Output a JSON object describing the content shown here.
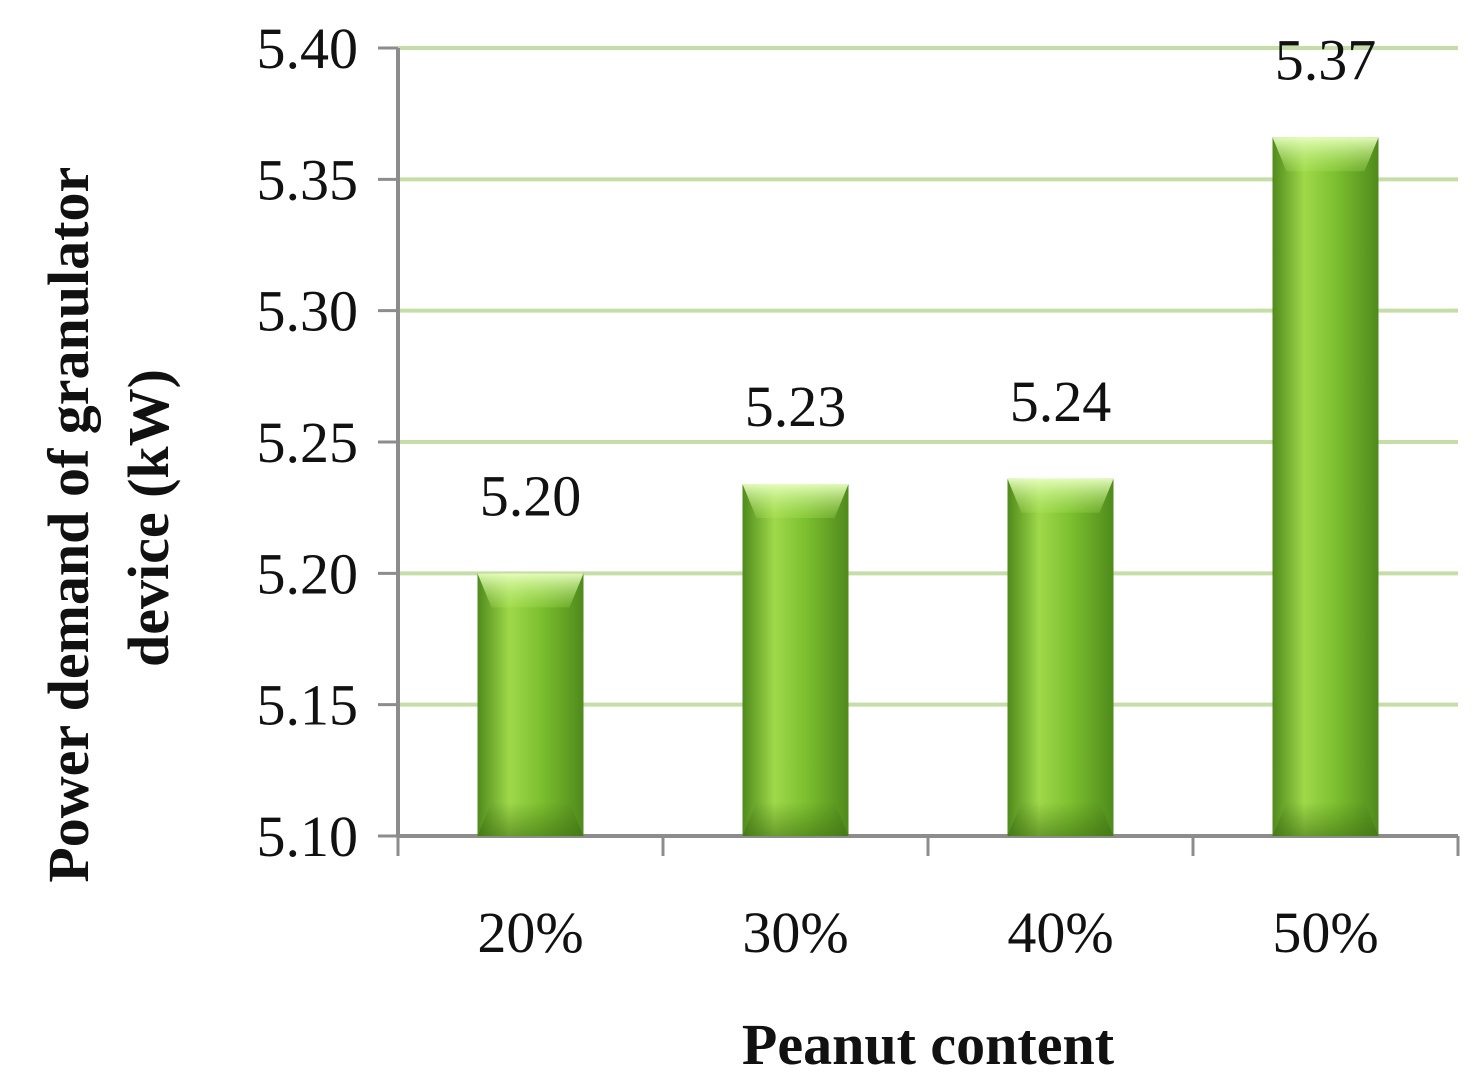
{
  "chart_data": {
    "type": "bar",
    "title": "",
    "xlabel": "Peanut content",
    "ylabel_line1": "Power demand of granulator",
    "ylabel_line2": "device (kW)",
    "categories": [
      "20%",
      "30%",
      "40%",
      "50%"
    ],
    "values": [
      5.2,
      5.234,
      5.236,
      5.366
    ],
    "data_labels": [
      "5.20",
      "5.23",
      "5.24",
      "5.37"
    ],
    "ylim": [
      5.1,
      5.4
    ],
    "yticks": [
      5.1,
      5.15,
      5.2,
      5.25,
      5.3,
      5.35,
      5.4
    ],
    "ytick_labels": [
      "5.10",
      "5.15",
      "5.20",
      "5.25",
      "5.30",
      "5.35",
      "5.40"
    ],
    "grid": true,
    "legend": "none",
    "colors": {
      "bar_light": "#9fd94a",
      "bar_mid": "#7cbf2f",
      "bar_dark": "#4f8a1c",
      "grid": "#c5dea6",
      "axis": "#8c8c8c"
    }
  }
}
